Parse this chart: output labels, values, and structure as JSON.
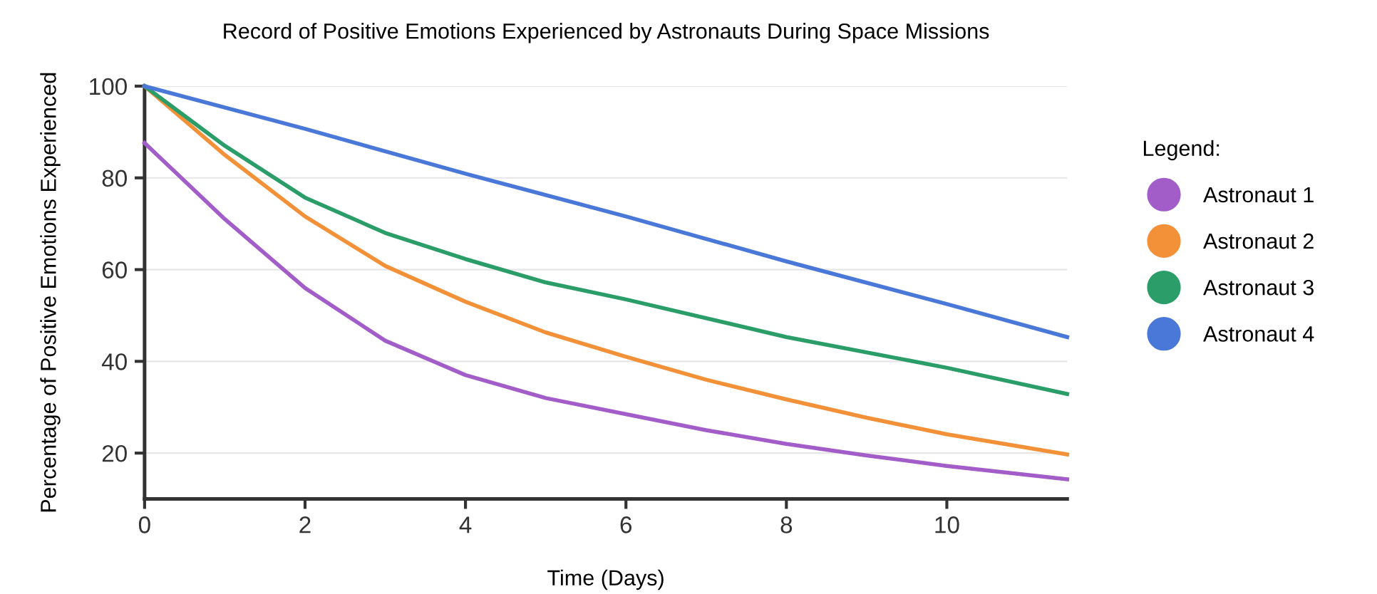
{
  "chart_data": {
    "type": "line",
    "title": "Record of Positive Emotions Experienced by Astronauts During Space Missions",
    "xlabel": "Time (Days)",
    "ylabel": "Percentage of Positive Emotions Experienced",
    "legend_title": "Legend:",
    "xlim": [
      0,
      11.5
    ],
    "xticks": [
      0,
      2,
      4,
      6,
      8,
      10
    ],
    "ylim": [
      10,
      100
    ],
    "yticks": [
      20,
      40,
      60,
      80,
      100
    ],
    "grid": "y",
    "legend": "right",
    "marker": "none",
    "line_style": "solid",
    "series": [
      {
        "name": "Astronaut 1",
        "color": "#a25dc9",
        "x": [
          0,
          1,
          2,
          3,
          4,
          5,
          6,
          7,
          8,
          9,
          10,
          11.5
        ],
        "values": [
          87.6,
          71,
          56,
          44.5,
          37,
          32,
          28.5,
          25,
          22,
          19.5,
          17.2,
          14.3
        ]
      },
      {
        "name": "Astronaut 2",
        "color": "#f39139",
        "x": [
          0,
          1,
          2,
          3,
          4,
          5,
          6,
          7,
          8,
          9,
          10,
          11.5
        ],
        "values": [
          100,
          85,
          71.6,
          60.8,
          53,
          46.3,
          41,
          36,
          31.7,
          27.7,
          24.1,
          19.7
        ]
      },
      {
        "name": "Astronaut 3",
        "color": "#2a9d68",
        "x": [
          0,
          1,
          2,
          3,
          4,
          5,
          6,
          8,
          10,
          11.5
        ],
        "values": [
          100,
          87,
          75.7,
          68,
          62.3,
          57.2,
          53.5,
          45.3,
          38.6,
          32.9
        ]
      },
      {
        "name": "Astronaut 4",
        "color": "#4a78d8",
        "x": [
          0,
          2,
          4,
          6,
          8,
          10,
          11.5
        ],
        "values": [
          100,
          90.7,
          80.9,
          71.6,
          61.8,
          52.5,
          45.3
        ]
      }
    ]
  }
}
